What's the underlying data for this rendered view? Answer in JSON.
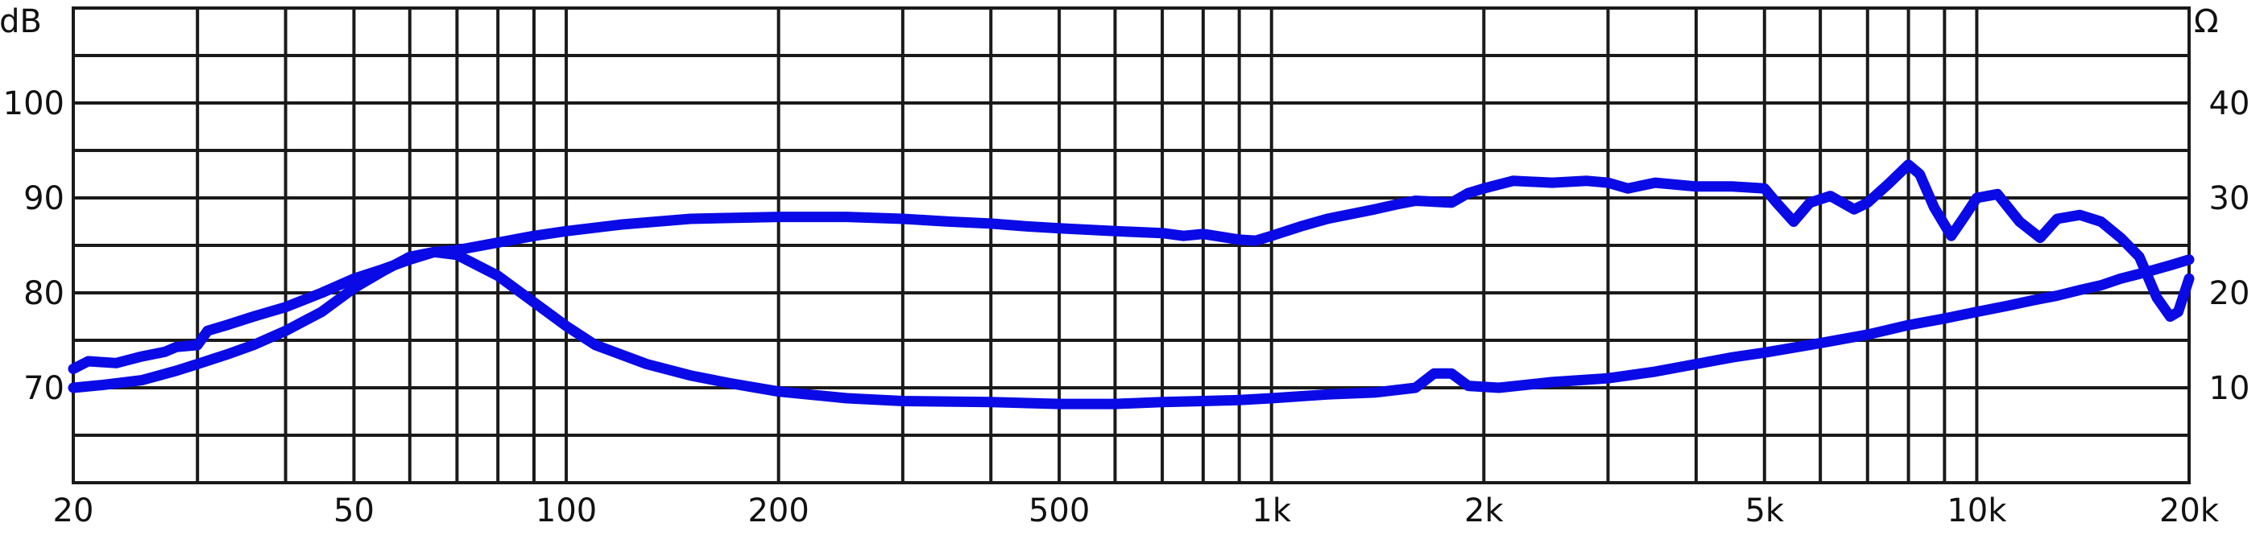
{
  "chart_data": {
    "type": "line",
    "title": "",
    "xlabel": "",
    "ylabel": "",
    "x_scale": "log",
    "xlim": [
      20,
      20000
    ],
    "ylim_left": [
      60,
      110
    ],
    "ylim_right": [
      0,
      50
    ],
    "left_unit": "dB",
    "right_unit": "Ω",
    "grid": true,
    "series_color": "#0a0ae6",
    "x_ticks": [
      {
        "value": 20,
        "label": "20"
      },
      {
        "value": 50,
        "label": "50"
      },
      {
        "value": 100,
        "label": "100"
      },
      {
        "value": 200,
        "label": "200"
      },
      {
        "value": 500,
        "label": "500"
      },
      {
        "value": 1000,
        "label": "1k"
      },
      {
        "value": 2000,
        "label": "2k"
      },
      {
        "value": 5000,
        "label": "5k"
      },
      {
        "value": 10000,
        "label": "10k"
      },
      {
        "value": 20000,
        "label": "20k"
      }
    ],
    "y_ticks_left": [
      {
        "value": 70,
        "label": "70"
      },
      {
        "value": 80,
        "label": "80"
      },
      {
        "value": 90,
        "label": "90"
      },
      {
        "value": 100,
        "label": "100"
      }
    ],
    "y_ticks_right": [
      {
        "value": 10,
        "label": "10"
      },
      {
        "value": 20,
        "label": "20"
      },
      {
        "value": 30,
        "label": "30"
      },
      {
        "value": 40,
        "label": "40"
      }
    ],
    "series": [
      {
        "axis": "left",
        "points": [
          [
            20,
            70
          ],
          [
            22,
            70.3
          ],
          [
            25,
            70.8
          ],
          [
            28,
            71.8
          ],
          [
            30,
            72.5
          ],
          [
            33,
            73.5
          ],
          [
            36,
            74.5
          ],
          [
            40,
            76
          ],
          [
            45,
            78
          ],
          [
            50,
            80.5
          ],
          [
            55,
            82.3
          ],
          [
            60,
            83.8
          ],
          [
            65,
            84.3
          ],
          [
            70,
            84.5
          ],
          [
            80,
            85.3
          ],
          [
            90,
            86
          ],
          [
            100,
            86.5
          ],
          [
            120,
            87.2
          ],
          [
            150,
            87.8
          ],
          [
            200,
            88
          ],
          [
            250,
            88
          ],
          [
            300,
            87.8
          ],
          [
            350,
            87.5
          ],
          [
            400,
            87.3
          ],
          [
            450,
            87
          ],
          [
            500,
            86.8
          ],
          [
            600,
            86.5
          ],
          [
            700,
            86.3
          ],
          [
            750,
            86
          ],
          [
            800,
            86.2
          ],
          [
            850,
            85.9
          ],
          [
            900,
            85.6
          ],
          [
            950,
            85.5
          ],
          [
            1000,
            86
          ],
          [
            1100,
            87
          ],
          [
            1200,
            87.8
          ],
          [
            1400,
            88.8
          ],
          [
            1500,
            89.3
          ],
          [
            1600,
            89.7
          ],
          [
            1800,
            89.5
          ],
          [
            1900,
            90.5
          ],
          [
            2000,
            91
          ],
          [
            2200,
            91.8
          ],
          [
            2500,
            91.6
          ],
          [
            2800,
            91.8
          ],
          [
            3000,
            91.6
          ],
          [
            3200,
            91
          ],
          [
            3500,
            91.6
          ],
          [
            4000,
            91.2
          ],
          [
            4500,
            91.2
          ],
          [
            5000,
            91
          ],
          [
            5200,
            89.5
          ],
          [
            5500,
            87.5
          ],
          [
            5800,
            89.5
          ],
          [
            6200,
            90.2
          ],
          [
            6700,
            88.8
          ],
          [
            7000,
            89.5
          ],
          [
            7500,
            91.5
          ],
          [
            8000,
            93.5
          ],
          [
            8300,
            92.5
          ],
          [
            8700,
            89
          ],
          [
            9200,
            86
          ],
          [
            9600,
            88
          ],
          [
            10000,
            90
          ],
          [
            10700,
            90.4
          ],
          [
            11500,
            87.5
          ],
          [
            12300,
            85.8
          ],
          [
            13000,
            87.8
          ],
          [
            14000,
            88.2
          ],
          [
            15000,
            87.5
          ],
          [
            16000,
            85.8
          ],
          [
            17000,
            83.8
          ],
          [
            18000,
            79.5
          ],
          [
            18800,
            77.5
          ],
          [
            19300,
            78
          ],
          [
            20000,
            81.5
          ]
        ]
      },
      {
        "axis": "right",
        "points": [
          [
            20,
            12
          ],
          [
            21,
            12.8
          ],
          [
            23,
            12.6
          ],
          [
            25,
            13.3
          ],
          [
            27,
            13.8
          ],
          [
            28,
            14.3
          ],
          [
            30,
            14.5
          ],
          [
            31,
            16
          ],
          [
            33,
            16.6
          ],
          [
            36,
            17.5
          ],
          [
            40,
            18.5
          ],
          [
            45,
            20
          ],
          [
            50,
            21.5
          ],
          [
            55,
            22.5
          ],
          [
            60,
            23.5
          ],
          [
            65,
            24.3
          ],
          [
            70,
            24
          ],
          [
            80,
            21.8
          ],
          [
            90,
            19
          ],
          [
            100,
            16.5
          ],
          [
            110,
            14.5
          ],
          [
            130,
            12.5
          ],
          [
            150,
            11.3
          ],
          [
            170,
            10.5
          ],
          [
            200,
            9.6
          ],
          [
            250,
            8.9
          ],
          [
            300,
            8.6
          ],
          [
            400,
            8.5
          ],
          [
            500,
            8.3
          ],
          [
            600,
            8.3
          ],
          [
            700,
            8.5
          ],
          [
            800,
            8.6
          ],
          [
            900,
            8.7
          ],
          [
            1000,
            8.9
          ],
          [
            1200,
            9.3
          ],
          [
            1400,
            9.5
          ],
          [
            1600,
            10
          ],
          [
            1700,
            11.5
          ],
          [
            1800,
            11.5
          ],
          [
            1900,
            10.2
          ],
          [
            2100,
            10
          ],
          [
            2500,
            10.6
          ],
          [
            3000,
            11
          ],
          [
            3500,
            11.7
          ],
          [
            4000,
            12.5
          ],
          [
            4500,
            13.2
          ],
          [
            5000,
            13.7
          ],
          [
            6000,
            14.7
          ],
          [
            7000,
            15.6
          ],
          [
            8000,
            16.6
          ],
          [
            9000,
            17.3
          ],
          [
            10000,
            18
          ],
          [
            11000,
            18.6
          ],
          [
            12000,
            19.2
          ],
          [
            13000,
            19.7
          ],
          [
            14000,
            20.3
          ],
          [
            15000,
            20.8
          ],
          [
            16000,
            21.5
          ],
          [
            17000,
            22
          ],
          [
            18000,
            22.5
          ],
          [
            19000,
            23
          ],
          [
            20000,
            23.5
          ]
        ]
      }
    ]
  }
}
